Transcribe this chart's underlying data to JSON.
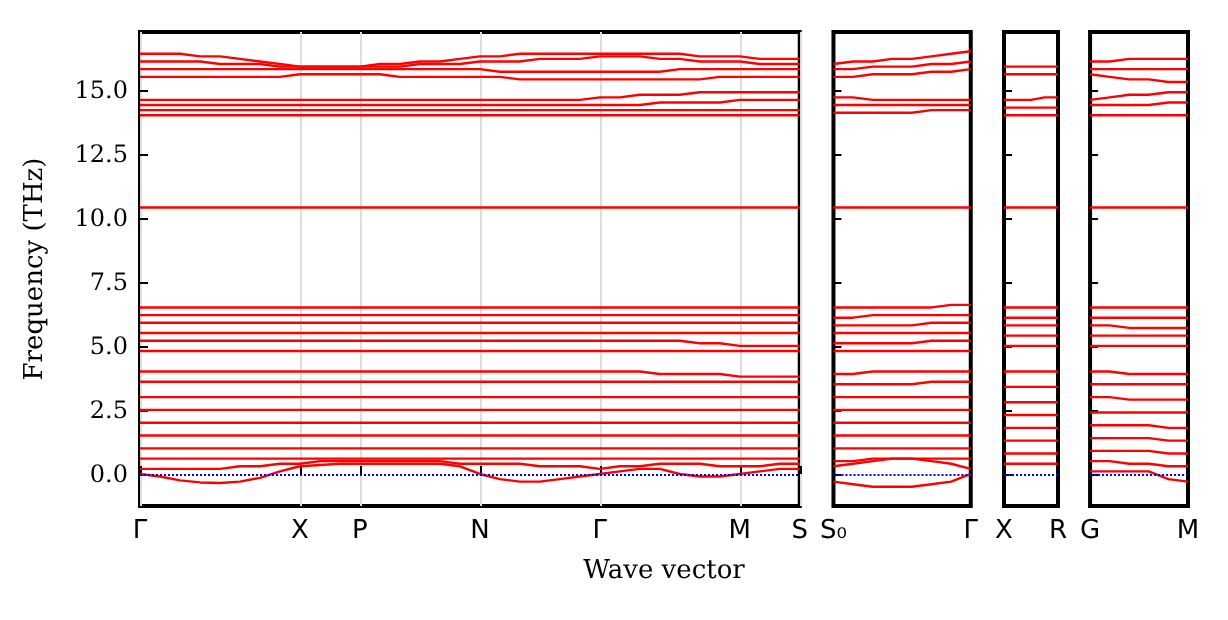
{
  "chart_data": [
    {
      "type": "line",
      "ylabel": "Frequency (THz)",
      "xlabel": "Wave vector",
      "color": "#ff0000",
      "grid": "x",
      "line_style": "solid",
      "categories": [
        "Γ",
        null,
        null,
        null,
        null,
        null,
        null,
        null,
        "X",
        null,
        null,
        "P",
        null,
        null,
        null,
        null,
        null,
        "N",
        null,
        null,
        null,
        null,
        null,
        "Γ",
        null,
        null,
        null,
        null,
        null,
        null,
        "M",
        null,
        null,
        "S"
      ],
      "ylim": [
        -1.25,
        17.25
      ],
      "yticks": [
        {
          "value": 0,
          "label": "0.0"
        },
        {
          "value": 2.5,
          "label": "2.5"
        },
        {
          "value": 5,
          "label": "5.0"
        },
        {
          "value": 7.5,
          "label": "7.5"
        },
        {
          "value": 10,
          "label": "10.0"
        },
        {
          "value": 12.5,
          "label": "12.5"
        },
        {
          "value": 15,
          "label": "15.0"
        }
      ],
      "ref_lines": [
        {
          "axis": "y",
          "value": 0,
          "label": null,
          "color": "#0000ff",
          "line_style": "dotted"
        }
      ],
      "series": [
        {
          "values": [
            16.4,
            16.4,
            16.4,
            16.3,
            16.3,
            16.2,
            16.1,
            16.0,
            15.9,
            15.9,
            15.9,
            15.9,
            16.0,
            16.0,
            16.1,
            16.1,
            16.2,
            16.3,
            16.3,
            16.4,
            16.4,
            16.4,
            16.4,
            16.4,
            16.4,
            16.4,
            16.4,
            16.4,
            16.3,
            16.3,
            16.3,
            16.2,
            16.2,
            16.2
          ]
        },
        {
          "values": [
            16.1,
            16.1,
            16.1,
            16.1,
            16.0,
            16.0,
            16.0,
            15.9,
            15.9,
            15.9,
            15.9,
            15.9,
            15.9,
            15.9,
            16.0,
            16.0,
            16.0,
            16.1,
            16.1,
            16.1,
            16.2,
            16.2,
            16.2,
            16.3,
            16.3,
            16.3,
            16.2,
            16.2,
            16.1,
            16.1,
            16.1,
            16.0,
            16.0,
            16.0
          ]
        },
        {
          "values": [
            15.8,
            15.8,
            15.8,
            15.8,
            15.8,
            15.8,
            15.8,
            15.8,
            15.8,
            15.8,
            15.8,
            15.8,
            15.8,
            15.8,
            15.8,
            15.8,
            15.8,
            15.8,
            15.7,
            15.7,
            15.7,
            15.7,
            15.7,
            15.7,
            15.7,
            15.7,
            15.7,
            15.8,
            15.8,
            15.8,
            15.8,
            15.8,
            15.8,
            15.8
          ]
        },
        {
          "values": [
            15.5,
            15.5,
            15.5,
            15.5,
            15.5,
            15.5,
            15.5,
            15.5,
            15.6,
            15.6,
            15.6,
            15.6,
            15.6,
            15.5,
            15.5,
            15.5,
            15.5,
            15.5,
            15.5,
            15.4,
            15.4,
            15.4,
            15.4,
            15.4,
            15.4,
            15.4,
            15.4,
            15.4,
            15.4,
            15.5,
            15.5,
            15.5,
            15.5,
            15.5
          ]
        },
        {
          "values": [
            14.6,
            14.6,
            14.6,
            14.6,
            14.6,
            14.6,
            14.6,
            14.6,
            14.6,
            14.6,
            14.6,
            14.6,
            14.6,
            14.6,
            14.6,
            14.6,
            14.6,
            14.6,
            14.6,
            14.6,
            14.6,
            14.6,
            14.6,
            14.7,
            14.7,
            14.8,
            14.8,
            14.8,
            14.9,
            14.9,
            14.9,
            14.9,
            14.9,
            14.9
          ]
        },
        {
          "values": [
            14.4,
            14.4,
            14.4,
            14.4,
            14.4,
            14.4,
            14.4,
            14.4,
            14.4,
            14.4,
            14.4,
            14.4,
            14.4,
            14.4,
            14.4,
            14.4,
            14.4,
            14.4,
            14.4,
            14.4,
            14.4,
            14.4,
            14.4,
            14.4,
            14.4,
            14.4,
            14.5,
            14.5,
            14.5,
            14.5,
            14.6,
            14.6,
            14.6,
            14.6
          ]
        },
        {
          "values": [
            14.2,
            14.2,
            14.2,
            14.2,
            14.2,
            14.2,
            14.2,
            14.2,
            14.2,
            14.2,
            14.2,
            14.2,
            14.2,
            14.2,
            14.2,
            14.2,
            14.2,
            14.2,
            14.2,
            14.2,
            14.2,
            14.2,
            14.2,
            14.2,
            14.2,
            14.2,
            14.2,
            14.2,
            14.2,
            14.2,
            14.2,
            14.2,
            14.2,
            14.2
          ]
        },
        {
          "values": [
            14.0,
            14.0,
            14.0,
            14.0,
            14.0,
            14.0,
            14.0,
            14.0,
            14.0,
            14.0,
            14.0,
            14.0,
            14.0,
            14.0,
            14.0,
            14.0,
            14.0,
            14.0,
            14.0,
            14.0,
            14.0,
            14.0,
            14.0,
            14.0,
            14.0,
            14.0,
            14.0,
            14.0,
            14.0,
            14.0,
            14.0,
            14.0,
            14.0,
            14.0
          ]
        },
        {
          "values": [
            10.4,
            10.4,
            10.4,
            10.4,
            10.4,
            10.4,
            10.4,
            10.4,
            10.4,
            10.4,
            10.4,
            10.4,
            10.4,
            10.4,
            10.4,
            10.4,
            10.4,
            10.4,
            10.4,
            10.4,
            10.4,
            10.4,
            10.4,
            10.4,
            10.4,
            10.4,
            10.4,
            10.4,
            10.4,
            10.4,
            10.4,
            10.4,
            10.4,
            10.4
          ]
        },
        {
          "values": [
            6.5,
            6.5,
            6.5,
            6.5,
            6.5,
            6.5,
            6.5,
            6.5,
            6.5,
            6.5,
            6.5,
            6.5,
            6.5,
            6.5,
            6.5,
            6.5,
            6.5,
            6.5,
            6.5,
            6.5,
            6.5,
            6.5,
            6.5,
            6.5,
            6.5,
            6.5,
            6.5,
            6.5,
            6.5,
            6.5,
            6.5,
            6.5,
            6.5,
            6.5
          ]
        },
        {
          "values": [
            6.2,
            6.2,
            6.2,
            6.2,
            6.2,
            6.2,
            6.2,
            6.2,
            6.2,
            6.2,
            6.2,
            6.2,
            6.2,
            6.2,
            6.2,
            6.2,
            6.2,
            6.2,
            6.2,
            6.2,
            6.2,
            6.2,
            6.2,
            6.2,
            6.2,
            6.2,
            6.2,
            6.2,
            6.2,
            6.2,
            6.2,
            6.2,
            6.2,
            6.2
          ]
        },
        {
          "values": [
            5.9,
            5.9,
            5.9,
            5.9,
            5.9,
            5.9,
            5.9,
            5.9,
            5.9,
            5.9,
            5.9,
            5.9,
            5.9,
            5.9,
            5.9,
            5.9,
            5.9,
            5.9,
            5.9,
            5.9,
            5.9,
            5.9,
            5.9,
            5.9,
            5.9,
            5.9,
            5.9,
            5.9,
            5.9,
            5.9,
            5.9,
            5.9,
            5.9,
            5.9
          ]
        },
        {
          "values": [
            5.5,
            5.5,
            5.5,
            5.5,
            5.5,
            5.5,
            5.5,
            5.5,
            5.5,
            5.5,
            5.5,
            5.5,
            5.5,
            5.5,
            5.5,
            5.5,
            5.5,
            5.5,
            5.5,
            5.5,
            5.5,
            5.5,
            5.5,
            5.5,
            5.5,
            5.5,
            5.5,
            5.5,
            5.5,
            5.5,
            5.5,
            5.5,
            5.5,
            5.5
          ]
        },
        {
          "values": [
            5.2,
            5.2,
            5.2,
            5.2,
            5.2,
            5.2,
            5.2,
            5.2,
            5.2,
            5.2,
            5.2,
            5.2,
            5.2,
            5.2,
            5.2,
            5.2,
            5.2,
            5.2,
            5.2,
            5.2,
            5.2,
            5.2,
            5.2,
            5.2,
            5.2,
            5.2,
            5.2,
            5.2,
            5.1,
            5.1,
            5.0,
            5.0,
            5.0,
            5.0
          ]
        },
        {
          "values": [
            4.8,
            4.8,
            4.8,
            4.8,
            4.8,
            4.8,
            4.8,
            4.8,
            4.8,
            4.8,
            4.8,
            4.8,
            4.8,
            4.8,
            4.8,
            4.8,
            4.8,
            4.8,
            4.8,
            4.8,
            4.8,
            4.8,
            4.8,
            4.8,
            4.8,
            4.8,
            4.8,
            4.8,
            4.8,
            4.8,
            4.8,
            4.8,
            4.8,
            4.8
          ]
        },
        {
          "values": [
            4.0,
            4.0,
            4.0,
            4.0,
            4.0,
            4.0,
            4.0,
            4.0,
            4.0,
            4.0,
            4.0,
            4.0,
            4.0,
            4.0,
            4.0,
            4.0,
            4.0,
            4.0,
            4.0,
            4.0,
            4.0,
            4.0,
            4.0,
            4.0,
            4.0,
            4.0,
            3.9,
            3.9,
            3.9,
            3.9,
            3.8,
            3.8,
            3.8,
            3.8
          ]
        },
        {
          "values": [
            3.6,
            3.6,
            3.6,
            3.6,
            3.6,
            3.6,
            3.6,
            3.6,
            3.6,
            3.6,
            3.6,
            3.6,
            3.6,
            3.6,
            3.6,
            3.6,
            3.6,
            3.6,
            3.6,
            3.6,
            3.6,
            3.6,
            3.6,
            3.6,
            3.6,
            3.6,
            3.6,
            3.6,
            3.6,
            3.6,
            3.6,
            3.6,
            3.6,
            3.6
          ]
        },
        {
          "values": [
            3.0,
            3.0,
            3.0,
            3.0,
            3.0,
            3.0,
            3.0,
            3.0,
            3.0,
            3.0,
            3.0,
            3.0,
            3.0,
            3.0,
            3.0,
            3.0,
            3.0,
            3.0,
            3.0,
            3.0,
            3.0,
            3.0,
            3.0,
            3.0,
            3.0,
            3.0,
            3.0,
            3.0,
            3.0,
            3.0,
            3.0,
            3.0,
            3.0,
            3.0
          ]
        },
        {
          "values": [
            2.5,
            2.5,
            2.5,
            2.5,
            2.5,
            2.5,
            2.5,
            2.5,
            2.5,
            2.5,
            2.5,
            2.5,
            2.5,
            2.5,
            2.5,
            2.5,
            2.5,
            2.5,
            2.5,
            2.5,
            2.5,
            2.5,
            2.5,
            2.5,
            2.5,
            2.5,
            2.5,
            2.5,
            2.5,
            2.5,
            2.5,
            2.5,
            2.5,
            2.5
          ]
        },
        {
          "values": [
            2.0,
            2.0,
            2.0,
            2.0,
            2.0,
            2.0,
            2.0,
            2.0,
            2.0,
            2.0,
            2.0,
            2.0,
            2.0,
            2.0,
            2.0,
            2.0,
            2.0,
            2.0,
            2.0,
            2.0,
            2.0,
            2.0,
            2.0,
            2.0,
            2.0,
            2.0,
            2.0,
            2.0,
            2.0,
            2.0,
            2.0,
            2.0,
            2.0,
            2.0
          ]
        },
        {
          "values": [
            1.5,
            1.5,
            1.5,
            1.5,
            1.5,
            1.5,
            1.5,
            1.5,
            1.5,
            1.5,
            1.5,
            1.5,
            1.5,
            1.5,
            1.5,
            1.5,
            1.5,
            1.5,
            1.5,
            1.5,
            1.5,
            1.5,
            1.5,
            1.5,
            1.5,
            1.5,
            1.5,
            1.5,
            1.5,
            1.5,
            1.5,
            1.5,
            1.5,
            1.5
          ]
        },
        {
          "values": [
            1.0,
            1.0,
            1.0,
            1.0,
            1.0,
            1.0,
            1.0,
            1.0,
            1.0,
            1.0,
            1.0,
            1.0,
            1.0,
            1.0,
            1.0,
            1.0,
            1.0,
            1.0,
            1.0,
            1.0,
            1.0,
            1.0,
            1.0,
            1.0,
            1.0,
            1.0,
            1.0,
            1.0,
            1.0,
            1.0,
            1.0,
            1.0,
            1.0,
            1.0
          ]
        },
        {
          "values": [
            0.6,
            0.6,
            0.6,
            0.6,
            0.6,
            0.6,
            0.6,
            0.6,
            0.6,
            0.6,
            0.6,
            0.6,
            0.6,
            0.6,
            0.6,
            0.6,
            0.6,
            0.6,
            0.6,
            0.6,
            0.6,
            0.6,
            0.6,
            0.6,
            0.6,
            0.6,
            0.6,
            0.6,
            0.6,
            0.6,
            0.6,
            0.6,
            0.6,
            0.6
          ]
        },
        {
          "values": [
            0.2,
            0.2,
            0.2,
            0.2,
            0.2,
            0.3,
            0.3,
            0.4,
            0.4,
            0.5,
            0.5,
            0.5,
            0.5,
            0.5,
            0.5,
            0.5,
            0.4,
            0.4,
            0.4,
            0.4,
            0.3,
            0.3,
            0.3,
            0.2,
            0.3,
            0.3,
            0.4,
            0.4,
            0.4,
            0.3,
            0.3,
            0.3,
            0.4,
            0.4
          ]
        },
        {
          "values": [
            0.0,
            -0.1,
            -0.25,
            -0.33,
            -0.35,
            -0.3,
            -0.15,
            0.1,
            0.3,
            0.35,
            0.4,
            0.4,
            0.4,
            0.4,
            0.4,
            0.4,
            0.3,
            0.0,
            -0.2,
            -0.3,
            -0.3,
            -0.2,
            -0.1,
            0.0,
            0.1,
            0.2,
            0.2,
            0.0,
            -0.1,
            -0.1,
            0.0,
            0.1,
            0.2,
            0.2
          ]
        }
      ]
    },
    {
      "type": "line",
      "color": "#ff0000",
      "line_style": "solid",
      "tick_labels": "x",
      "categories": [
        "S₀",
        null,
        null,
        null,
        null,
        null,
        null,
        "Γ"
      ],
      "ylim": [
        -1.25,
        17.25
      ],
      "yticks": [
        {
          "value": 0,
          "label": null
        },
        {
          "value": 2.5,
          "label": null
        },
        {
          "value": 5,
          "label": null
        },
        {
          "value": 7.5,
          "label": null
        },
        {
          "value": 10,
          "label": null
        },
        {
          "value": 12.5,
          "label": null
        },
        {
          "value": 15,
          "label": null
        }
      ],
      "ref_lines": [
        {
          "axis": "y",
          "value": 0,
          "label": null,
          "color": "#0000ff",
          "line_style": "dotted"
        }
      ],
      "series": [
        {
          "values": [
            16.0,
            16.1,
            16.1,
            16.2,
            16.2,
            16.3,
            16.4,
            16.5
          ]
        },
        {
          "values": [
            15.8,
            15.8,
            15.9,
            15.9,
            15.9,
            16.0,
            16.0,
            16.1
          ]
        },
        {
          "values": [
            15.5,
            15.5,
            15.6,
            15.6,
            15.6,
            15.7,
            15.7,
            15.8
          ]
        },
        {
          "values": [
            14.7,
            14.7,
            14.6,
            14.6,
            14.6,
            14.6,
            14.6,
            14.6
          ]
        },
        {
          "values": [
            14.4,
            14.4,
            14.4,
            14.4,
            14.4,
            14.4,
            14.4,
            14.4
          ]
        },
        {
          "values": [
            14.1,
            14.1,
            14.1,
            14.1,
            14.1,
            14.2,
            14.2,
            14.2
          ]
        },
        {
          "values": [
            10.4,
            10.4,
            10.4,
            10.4,
            10.4,
            10.4,
            10.4,
            10.4
          ]
        },
        {
          "values": [
            6.5,
            6.5,
            6.5,
            6.5,
            6.5,
            6.5,
            6.6,
            6.6
          ]
        },
        {
          "values": [
            6.1,
            6.1,
            6.2,
            6.2,
            6.2,
            6.2,
            6.2,
            6.2
          ]
        },
        {
          "values": [
            5.8,
            5.8,
            5.8,
            5.8,
            5.8,
            5.9,
            5.9,
            5.9
          ]
        },
        {
          "values": [
            5.5,
            5.5,
            5.5,
            5.5,
            5.5,
            5.5,
            5.5,
            5.5
          ]
        },
        {
          "values": [
            5.1,
            5.1,
            5.1,
            5.1,
            5.1,
            5.2,
            5.2,
            5.2
          ]
        },
        {
          "values": [
            4.8,
            4.8,
            4.8,
            4.8,
            4.8,
            4.8,
            4.8,
            4.8
          ]
        },
        {
          "values": [
            3.9,
            3.9,
            4.0,
            4.0,
            4.0,
            4.0,
            4.0,
            4.0
          ]
        },
        {
          "values": [
            3.5,
            3.5,
            3.5,
            3.5,
            3.5,
            3.6,
            3.6,
            3.6
          ]
        },
        {
          "values": [
            3.0,
            3.0,
            3.0,
            3.0,
            3.0,
            3.0,
            3.0,
            3.0
          ]
        },
        {
          "values": [
            2.5,
            2.5,
            2.5,
            2.5,
            2.5,
            2.5,
            2.5,
            2.5
          ]
        },
        {
          "values": [
            2.0,
            2.0,
            2.0,
            2.0,
            2.0,
            2.0,
            2.0,
            2.0
          ]
        },
        {
          "values": [
            1.5,
            1.5,
            1.5,
            1.5,
            1.5,
            1.5,
            1.5,
            1.5
          ]
        },
        {
          "values": [
            1.0,
            1.0,
            1.0,
            1.0,
            1.0,
            1.0,
            1.0,
            1.0
          ]
        },
        {
          "values": [
            0.5,
            0.5,
            0.6,
            0.6,
            0.6,
            0.6,
            0.6,
            0.6
          ]
        },
        {
          "values": [
            0.3,
            0.4,
            0.5,
            0.6,
            0.6,
            0.5,
            0.4,
            0.2
          ]
        },
        {
          "values": [
            -0.3,
            -0.4,
            -0.5,
            -0.5,
            -0.5,
            -0.4,
            -0.3,
            0.0
          ]
        }
      ]
    },
    {
      "type": "line",
      "color": "#ff0000",
      "line_style": "solid",
      "tick_labels": "x",
      "categories": [
        "X",
        null,
        null,
        null,
        "R"
      ],
      "ylim": [
        -1.25,
        17.25
      ],
      "yticks": [
        {
          "value": 0,
          "label": null
        },
        {
          "value": 2.5,
          "label": null
        },
        {
          "value": 5,
          "label": null
        },
        {
          "value": 7.5,
          "label": null
        },
        {
          "value": 10,
          "label": null
        },
        {
          "value": 12.5,
          "label": null
        },
        {
          "value": 15,
          "label": null
        }
      ],
      "ref_lines": [
        {
          "axis": "y",
          "value": 0,
          "label": null,
          "color": "#0000ff",
          "line_style": "dotted"
        }
      ],
      "series": [
        {
          "values": [
            15.9,
            15.9,
            15.9,
            15.9,
            15.9
          ]
        },
        {
          "values": [
            15.6,
            15.6,
            15.6,
            15.6,
            15.6
          ]
        },
        {
          "values": [
            14.6,
            14.6,
            14.6,
            14.7,
            14.7
          ]
        },
        {
          "values": [
            14.3,
            14.3,
            14.3,
            14.3,
            14.3
          ]
        },
        {
          "values": [
            14.0,
            14.0,
            14.0,
            14.0,
            14.0
          ]
        },
        {
          "values": [
            10.4,
            10.4,
            10.4,
            10.4,
            10.4
          ]
        },
        {
          "values": [
            6.5,
            6.5,
            6.5,
            6.5,
            6.5
          ]
        },
        {
          "values": [
            6.1,
            6.1,
            6.1,
            6.1,
            6.1
          ]
        },
        {
          "values": [
            5.8,
            5.8,
            5.8,
            5.8,
            5.8
          ]
        },
        {
          "values": [
            5.4,
            5.4,
            5.4,
            5.4,
            5.4
          ]
        },
        {
          "values": [
            5.0,
            5.0,
            5.0,
            5.0,
            5.0
          ]
        },
        {
          "values": [
            4.0,
            4.0,
            4.0,
            4.0,
            4.0
          ]
        },
        {
          "values": [
            3.4,
            3.4,
            3.4,
            3.4,
            3.4
          ]
        },
        {
          "values": [
            2.8,
            2.8,
            2.8,
            2.8,
            2.8
          ]
        },
        {
          "values": [
            2.3,
            2.3,
            2.3,
            2.3,
            2.3
          ]
        },
        {
          "values": [
            1.8,
            1.8,
            1.8,
            1.8,
            1.8
          ]
        },
        {
          "values": [
            1.3,
            1.3,
            1.3,
            1.3,
            1.3
          ]
        },
        {
          "values": [
            0.8,
            0.8,
            0.8,
            0.8,
            0.8
          ]
        },
        {
          "values": [
            0.4,
            0.4,
            0.4,
            0.4,
            0.4
          ]
        }
      ]
    },
    {
      "type": "line",
      "color": "#ff0000",
      "line_style": "solid",
      "tick_labels": "x",
      "categories": [
        "G",
        null,
        null,
        null,
        null,
        "M"
      ],
      "ylim": [
        -1.25,
        17.25
      ],
      "yticks": [
        {
          "value": 0,
          "label": null
        },
        {
          "value": 2.5,
          "label": null
        },
        {
          "value": 5,
          "label": null
        },
        {
          "value": 7.5,
          "label": null
        },
        {
          "value": 10,
          "label": null
        },
        {
          "value": 12.5,
          "label": null
        },
        {
          "value": 15,
          "label": null
        }
      ],
      "ref_lines": [
        {
          "axis": "y",
          "value": 0,
          "label": null,
          "color": "#0000ff",
          "line_style": "dotted"
        }
      ],
      "series": [
        {
          "values": [
            16.1,
            16.1,
            16.2,
            16.2,
            16.2,
            16.2
          ]
        },
        {
          "values": [
            15.8,
            15.8,
            15.8,
            15.8,
            15.8,
            15.8
          ]
        },
        {
          "values": [
            15.6,
            15.5,
            15.4,
            15.4,
            15.3,
            15.3
          ]
        },
        {
          "values": [
            14.6,
            14.7,
            14.8,
            14.8,
            14.9,
            14.9
          ]
        },
        {
          "values": [
            14.4,
            14.4,
            14.4,
            14.4,
            14.5,
            14.5
          ]
        },
        {
          "values": [
            14.0,
            14.0,
            14.0,
            14.0,
            14.0,
            14.0
          ]
        },
        {
          "values": [
            10.4,
            10.4,
            10.4,
            10.4,
            10.4,
            10.4
          ]
        },
        {
          "values": [
            6.5,
            6.5,
            6.5,
            6.5,
            6.5,
            6.5
          ]
        },
        {
          "values": [
            6.1,
            6.1,
            6.1,
            6.1,
            6.1,
            6.1
          ]
        },
        {
          "values": [
            5.8,
            5.8,
            5.7,
            5.7,
            5.7,
            5.7
          ]
        },
        {
          "values": [
            5.4,
            5.4,
            5.4,
            5.4,
            5.4,
            5.4
          ]
        },
        {
          "values": [
            5.0,
            5.0,
            5.0,
            5.0,
            5.0,
            5.0
          ]
        },
        {
          "values": [
            4.0,
            4.0,
            3.9,
            3.9,
            3.9,
            3.9
          ]
        },
        {
          "values": [
            3.5,
            3.5,
            3.5,
            3.5,
            3.5,
            3.5
          ]
        },
        {
          "values": [
            3.0,
            3.0,
            2.9,
            2.9,
            2.9,
            2.9
          ]
        },
        {
          "values": [
            2.4,
            2.4,
            2.4,
            2.4,
            2.4,
            2.4
          ]
        },
        {
          "values": [
            1.9,
            1.9,
            1.9,
            1.9,
            1.8,
            1.8
          ]
        },
        {
          "values": [
            1.4,
            1.4,
            1.4,
            1.4,
            1.3,
            1.3
          ]
        },
        {
          "values": [
            0.9,
            0.9,
            0.9,
            0.9,
            0.8,
            0.8
          ]
        },
        {
          "values": [
            0.5,
            0.5,
            0.4,
            0.4,
            0.3,
            0.3
          ]
        },
        {
          "values": [
            0.1,
            0.1,
            0.1,
            0.1,
            -0.2,
            -0.3
          ]
        }
      ]
    }
  ]
}
